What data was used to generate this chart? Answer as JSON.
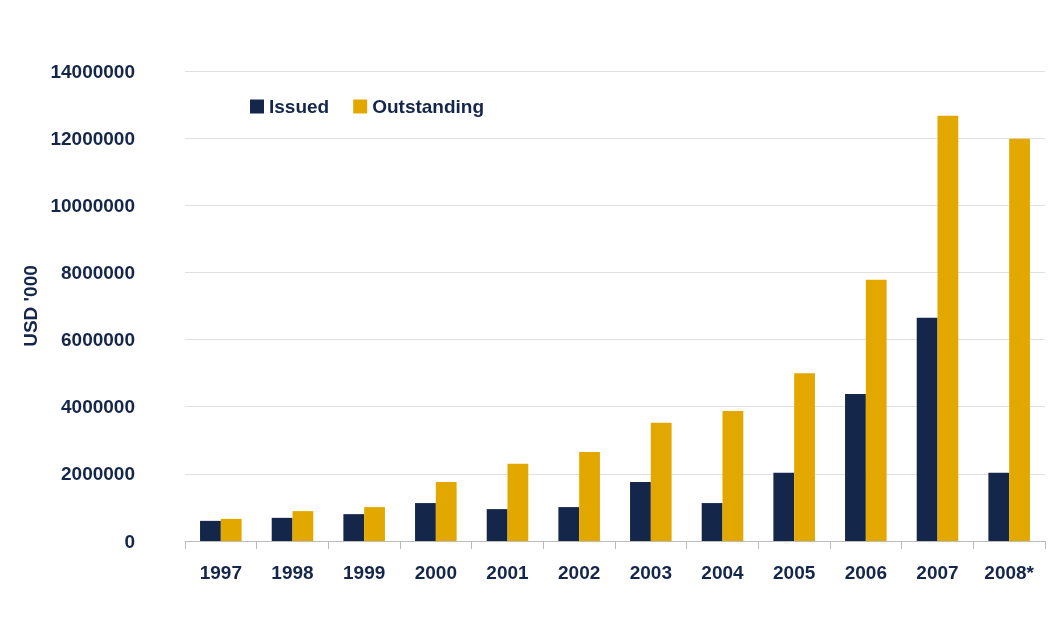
{
  "chart_data": {
    "type": "bar",
    "ylabel": "USD '000",
    "categories": [
      "1997",
      "1998",
      "1999",
      "2000",
      "2001",
      "2002",
      "2003",
      "2004",
      "2005",
      "2006",
      "2007",
      "2008*"
    ],
    "series": [
      {
        "name": "Issued",
        "color": "#14264a",
        "values": [
          600000,
          690000,
          800000,
          1130000,
          950000,
          1010000,
          1760000,
          1130000,
          2030000,
          4380000,
          6650000,
          2030000
        ]
      },
      {
        "name": "Outstanding",
        "color": "#e3a800",
        "values": [
          660000,
          890000,
          1010000,
          1760000,
          2300000,
          2650000,
          3520000,
          3870000,
          5000000,
          7780000,
          12670000,
          11980000
        ]
      }
    ],
    "ylim": [
      0,
      14000000
    ],
    "yticks": [
      0,
      2000000,
      4000000,
      6000000,
      8000000,
      10000000,
      12000000,
      14000000
    ],
    "grid": "y",
    "legend": "top left"
  }
}
